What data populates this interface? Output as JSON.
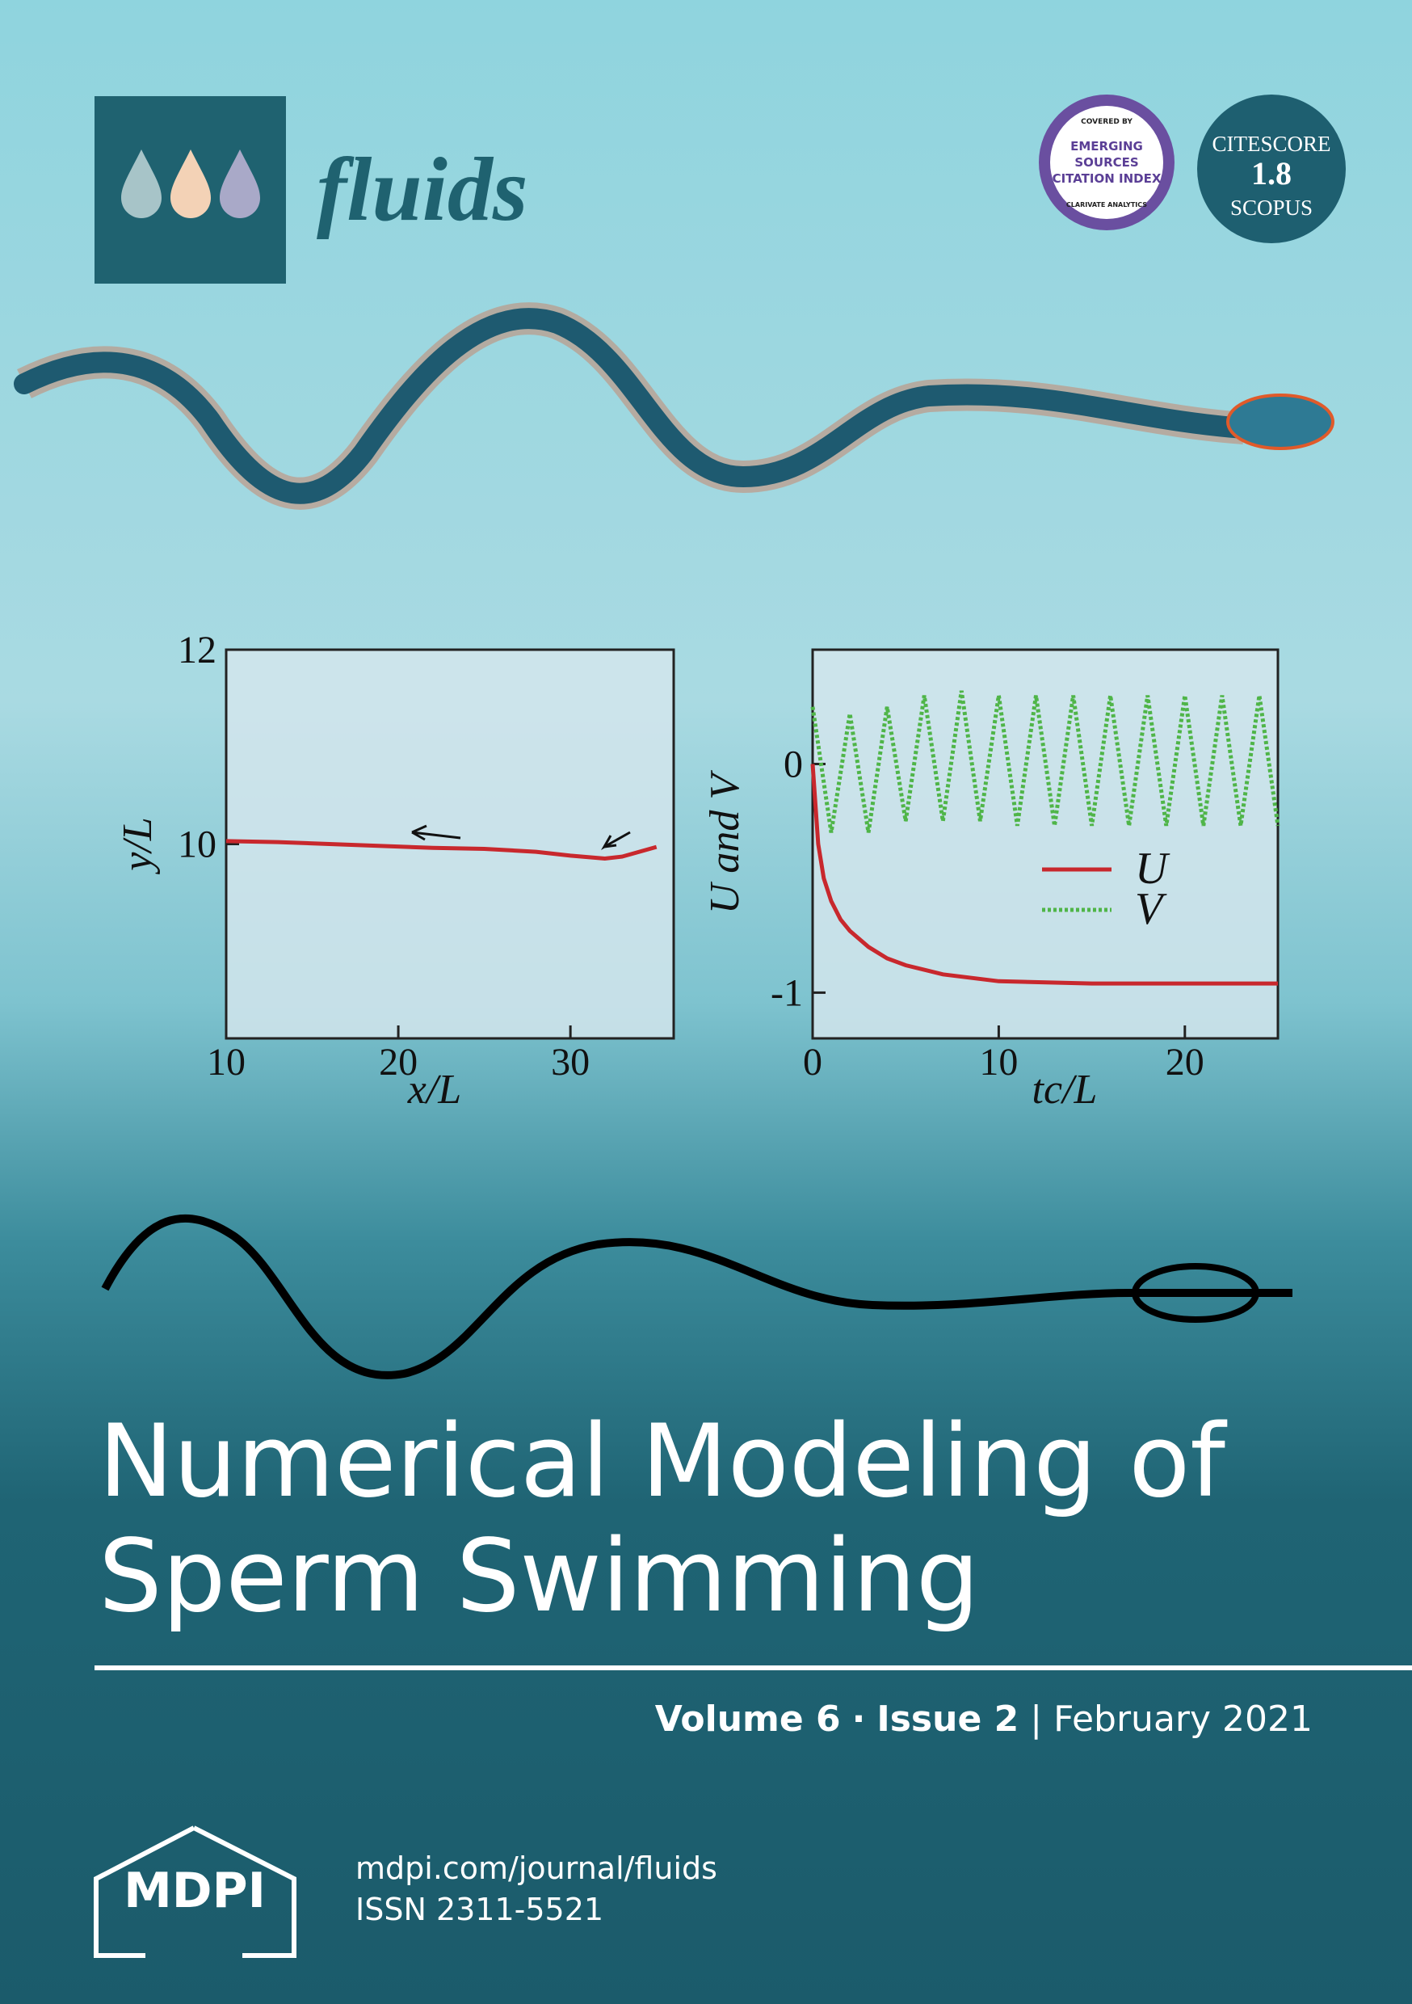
{
  "journal": {
    "name": "fluids"
  },
  "badges": {
    "esci": [
      "COVERED BY",
      "EMERGING",
      "SOURCES",
      "CITATION INDEX",
      "CLARIVATE ANALYTICS"
    ],
    "citescore": {
      "label": "CITESCORE",
      "value": "1.8",
      "source": "SCOPUS"
    }
  },
  "chart_data": [
    {
      "type": "line",
      "x_label": "x/L",
      "y_label": "y/L",
      "xlim": [
        10,
        36
      ],
      "ylim": [
        8,
        12
      ],
      "xticks": [
        10,
        20,
        30
      ],
      "yticks": [
        10,
        12
      ],
      "series": [
        {
          "color": "#c8282d",
          "x": [
            10,
            13,
            16,
            19,
            22,
            25,
            28,
            30,
            32,
            33,
            34,
            35
          ],
          "values": [
            10.03,
            10.02,
            10.0,
            9.98,
            9.96,
            9.95,
            9.92,
            9.88,
            9.85,
            9.87,
            9.92,
            9.97
          ]
        }
      ]
    },
    {
      "type": "line",
      "x_label": "tc/L",
      "y_label": "U and V",
      "xlim": [
        0,
        25
      ],
      "ylim": [
        -1.2,
        0.5
      ],
      "xticks": [
        0,
        10,
        20
      ],
      "yticks": [
        -1,
        0
      ],
      "series": [
        {
          "name": "U",
          "color": "#c8282d",
          "dash": false,
          "x": [
            0,
            0.3,
            0.6,
            1,
            1.5,
            2,
            3,
            4,
            5,
            7,
            10,
            15,
            20,
            25
          ],
          "values": [
            0,
            -0.35,
            -0.5,
            -0.6,
            -0.68,
            -0.73,
            -0.8,
            -0.85,
            -0.88,
            -0.92,
            -0.95,
            -0.96,
            -0.96,
            -0.96
          ]
        },
        {
          "name": "V",
          "color": "#4fb548",
          "dash": true,
          "x": [
            0,
            1,
            2,
            3,
            4,
            5,
            6,
            7,
            8,
            9,
            10,
            11,
            12,
            13,
            14,
            15,
            16,
            17,
            18,
            19,
            20,
            21,
            22,
            23,
            24,
            25
          ],
          "values": [
            0.25,
            -0.3,
            0.22,
            -0.3,
            0.25,
            -0.25,
            0.3,
            -0.25,
            0.32,
            -0.25,
            0.3,
            -0.27,
            0.3,
            -0.27,
            0.3,
            -0.27,
            0.3,
            -0.27,
            0.3,
            -0.27,
            0.3,
            -0.27,
            0.3,
            -0.27,
            0.3,
            -0.27
          ]
        }
      ],
      "legend": "center-right"
    }
  ],
  "title": [
    "Numerical Modeling of",
    "Sperm Swimming"
  ],
  "issue": {
    "volume": "Volume 6",
    "separator": "·",
    "issue": "Issue 2",
    "divider": "|",
    "date": "February 2021"
  },
  "footer": {
    "publisher": "MDPI",
    "url": "mdpi.com/journal/fluids",
    "issn": "ISSN 2311-5521"
  }
}
